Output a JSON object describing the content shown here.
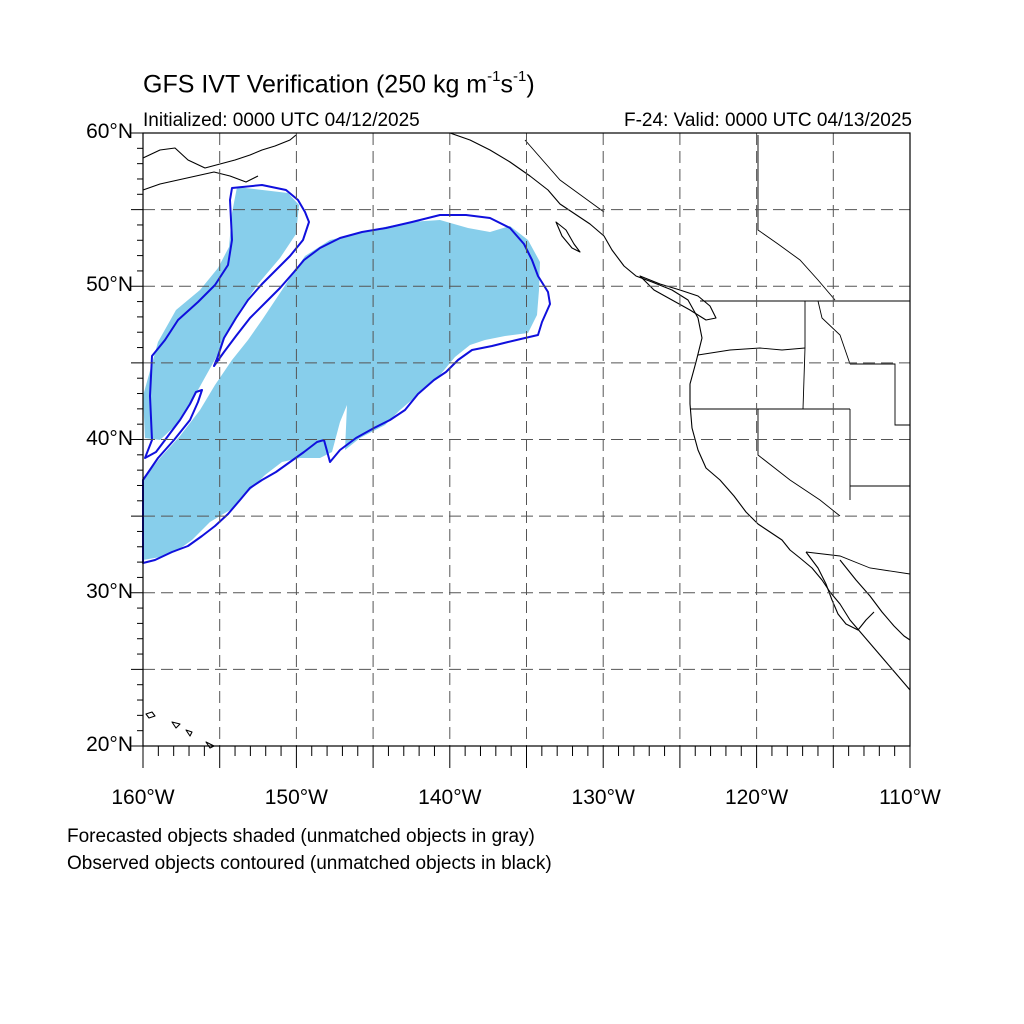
{
  "title": {
    "main": "GFS IVT Verification (250 kg m",
    "exp1": "-1",
    "mid": "s",
    "exp2": "-1",
    "close": ")"
  },
  "subtitle": {
    "left": "Initialized: 0000 UTC 04/12/2025",
    "right": "F-24: Valid: 0000 UTC 04/13/2025"
  },
  "map": {
    "lon_range": [
      -160,
      -110
    ],
    "lat_range": [
      20,
      60
    ],
    "lat_ticks": [
      {
        "lat": 60,
        "label": "60°N"
      },
      {
        "lat": 50,
        "label": "50°N"
      },
      {
        "lat": 40,
        "label": "40°N"
      },
      {
        "lat": 30,
        "label": "30°N"
      },
      {
        "lat": 20,
        "label": "20°N"
      }
    ],
    "lon_ticks": [
      {
        "lon": -160,
        "label": "160°W"
      },
      {
        "lon": -150,
        "label": "150°W"
      },
      {
        "lon": -140,
        "label": "140°W"
      },
      {
        "lon": -130,
        "label": "130°W"
      },
      {
        "lon": -120,
        "label": "120°W"
      },
      {
        "lon": -110,
        "label": "110°W"
      }
    ],
    "grid_style": "dashed",
    "grid_spacing_deg": 5,
    "colors": {
      "forecast_fill": "#87ceeb",
      "observed_contour": "#1010dd",
      "coastline": "#000000",
      "grid": "#555555"
    }
  },
  "notes": {
    "line1": "Forecasted objects shaded (unmatched objects in gray)",
    "line2": "Observed objects contoured (unmatched objects in black)"
  }
}
